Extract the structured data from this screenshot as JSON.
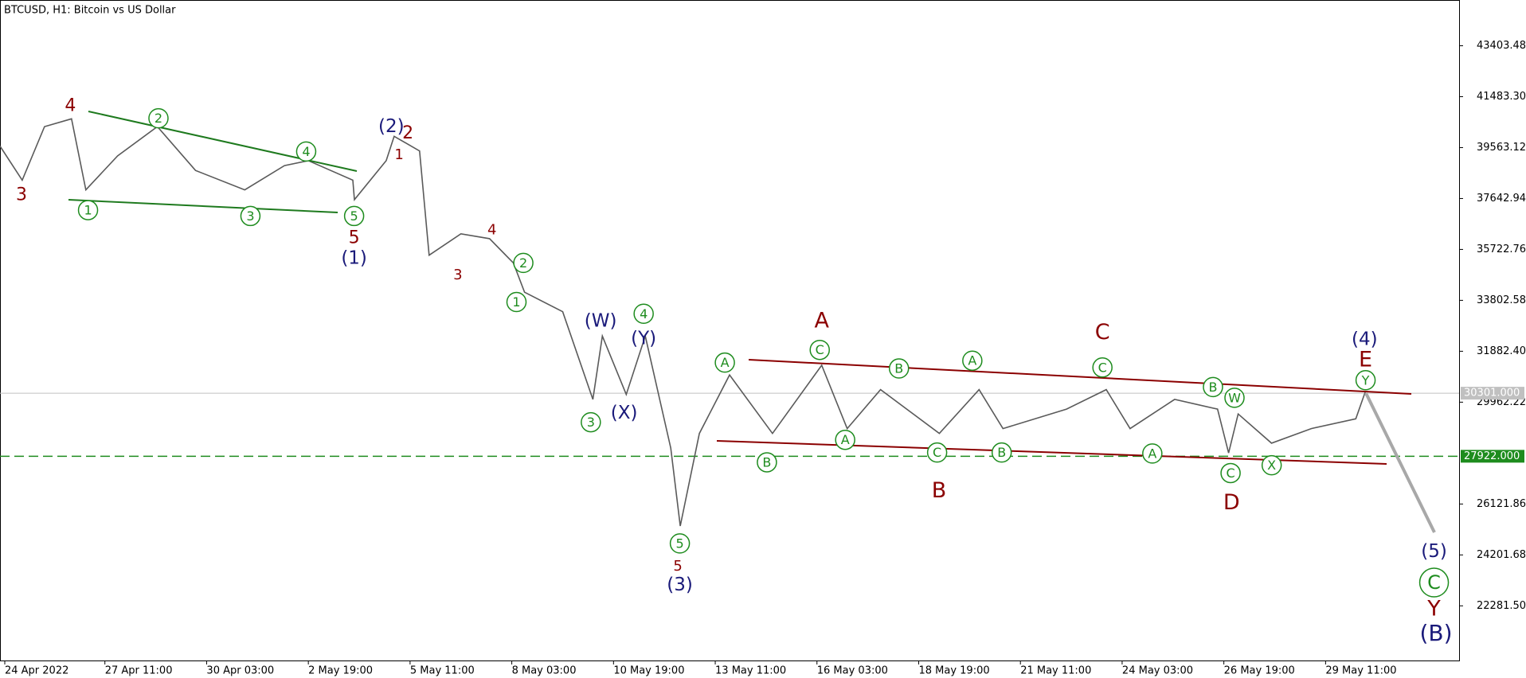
{
  "chart_data": {
    "type": "line",
    "title": "BTCUSD, H1:  Bitcoin vs US Dollar",
    "x": [
      17,
      31,
      45,
      62,
      71,
      91,
      116,
      140,
      171,
      196,
      211,
      239,
      240,
      260,
      265,
      281,
      287,
      307,
      325,
      340,
      347,
      371,
      390,
      396,
      411,
      423,
      439,
      445,
      457,
      476,
      503,
      534,
      550,
      571,
      608,
      633,
      648,
      688,
      713,
      728,
      756,
      783,
      790,
      796,
      817,
      842,
      870,
      876
    ],
    "values": [
      39620,
      38334,
      40354,
      40648,
      37967,
      39252,
      40354,
      38701,
      37967,
      38885,
      39069,
      38334,
      37599,
      39069,
      39987,
      39436,
      35505,
      36313,
      36130,
      35211,
      34109,
      33375,
      30068,
      32456,
      30252,
      32456,
      28231,
      25292,
      28782,
      30987,
      28782,
      31354,
      28966,
      30436,
      28782,
      30436,
      28966,
      29701,
      30436,
      28966,
      30068,
      29701,
      28048,
      29517,
      28415,
      28966,
      29333,
      30362
    ],
    "color": "#5a5a5a",
    "xlim": [
      17,
      935
    ],
    "ylim": [
      20220,
      45129
    ],
    "xticks": [
      {
        "value": 20,
        "label": "24 Apr 2022"
      },
      {
        "value": 83,
        "label": "27 Apr 11:00"
      },
      {
        "value": 147,
        "label": "30 Apr 03:00"
      },
      {
        "value": 211,
        "label": "2 May 19:00"
      },
      {
        "value": 275,
        "label": "5 May 11:00"
      },
      {
        "value": 339,
        "label": "8 May 03:00"
      },
      {
        "value": 403,
        "label": "10 May 19:00"
      },
      {
        "value": 467,
        "label": "13 May 11:00"
      },
      {
        "value": 531,
        "label": "16 May 03:00"
      },
      {
        "value": 595,
        "label": "18 May 19:00"
      },
      {
        "value": 659,
        "label": "21 May 11:00"
      },
      {
        "value": 723,
        "label": "24 May 03:00"
      },
      {
        "value": 787,
        "label": "26 May 19:00"
      },
      {
        "value": 851,
        "label": "29 May 11:00"
      }
    ],
    "yticks": [
      {
        "value": 43403.48,
        "label": "43403.480"
      },
      {
        "value": 41483.3,
        "label": "41483.300"
      },
      {
        "value": 39563.12,
        "label": "39563.120"
      },
      {
        "value": 37642.94,
        "label": "37642.940"
      },
      {
        "value": 35722.76,
        "label": "35722.760"
      },
      {
        "value": 33802.58,
        "label": "33802.580"
      },
      {
        "value": 31882.4,
        "label": "31882.400"
      },
      {
        "value": 29962.22,
        "label": "29962.220"
      },
      {
        "value": 26121.86,
        "label": "26121.860"
      },
      {
        "value": 24201.68,
        "label": "24201.680"
      },
      {
        "value": 22281.5,
        "label": "22281.500"
      }
    ],
    "grid": false,
    "price_lines": [
      {
        "value": 30301,
        "label": "30301.000",
        "color": "#c0c0c0",
        "dashed": false
      },
      {
        "value": 27922,
        "label": "27922.000",
        "color": "#1e8c1e",
        "dashed": true
      }
    ],
    "annotations": [
      "4",
      "3",
      "1",
      "2",
      "3",
      "4",
      "5",
      "5",
      "(1)",
      "(2)",
      "2",
      "1",
      "4",
      "3",
      "2",
      "1",
      "(W)",
      "4",
      "(Y)",
      "(X)",
      "3",
      "5",
      "5",
      "(3)",
      "A",
      "A",
      "C",
      "B",
      "A",
      "B",
      "A",
      "B",
      "C",
      "B",
      "C",
      "C",
      "A",
      "B",
      "W",
      "C",
      "D",
      "X",
      "(4)",
      "E",
      "Y",
      "(5)",
      "C",
      "Y",
      "(B)"
    ]
  }
}
